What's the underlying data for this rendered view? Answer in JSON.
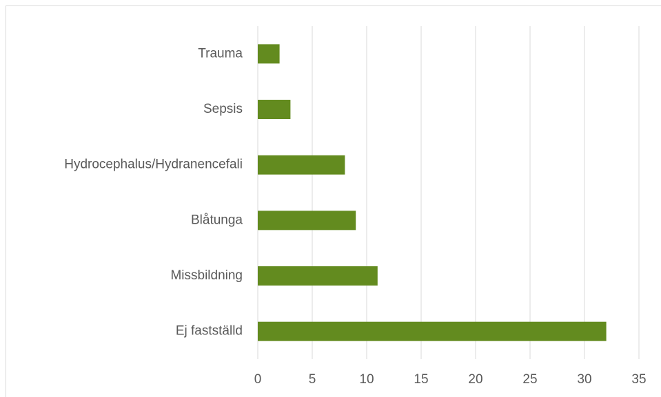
{
  "chart_data": {
    "type": "bar",
    "orientation": "horizontal",
    "categories": [
      "Trauma",
      "Sepsis",
      "Hydrocephalus/Hydranencefali",
      "Blåtunga",
      "Missbildning",
      "Ej fastställd"
    ],
    "values": [
      2,
      3,
      8,
      9,
      11,
      32
    ],
    "color": "#638b1f",
    "xlim": [
      0,
      35
    ],
    "xticks": [
      0,
      5,
      10,
      15,
      20,
      25,
      30,
      35
    ],
    "grid": true
  }
}
